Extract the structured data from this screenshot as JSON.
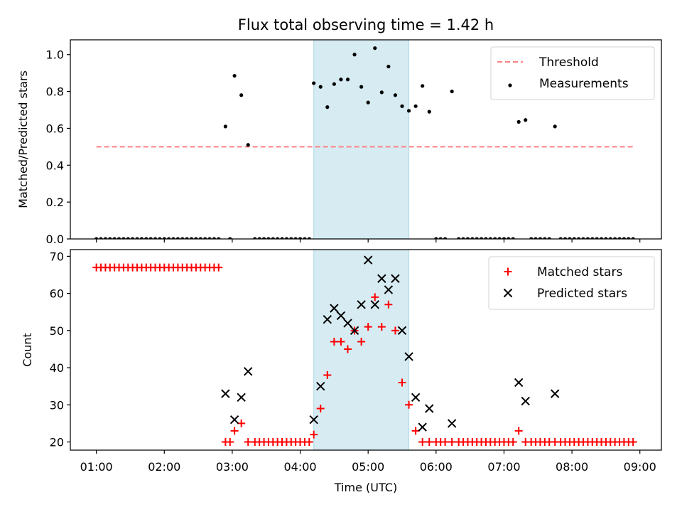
{
  "figure": {
    "title": "Flux total observing time = 1.42 h",
    "xlabel": "Time (UTC)",
    "shaded_interval": [
      "04:12",
      "05:36"
    ],
    "shade_color": "#add8e6"
  },
  "chart_data": [
    {
      "type": "scatter",
      "ylabel": "Matched/Predicted stars",
      "xlim": [
        "00:37",
        "09:19"
      ],
      "ylim": [
        0,
        1.08
      ],
      "y_ticks": [
        "0.0",
        "0.2",
        "0.4",
        "0.6",
        "0.8",
        "1.0"
      ],
      "legend_position": "top-right",
      "threshold": {
        "name": "Threshold",
        "value": 0.5,
        "x": [
          "01:00",
          "08:54"
        ],
        "style": "dashed",
        "color": "#ff8080"
      },
      "series": [
        {
          "name": "Measurements",
          "marker": "dot",
          "color": "#000000",
          "points": [
            [
              "01:00",
              0
            ],
            [
              "01:04",
              0
            ],
            [
              "01:08",
              0
            ],
            [
              "01:12",
              0
            ],
            [
              "01:16",
              0
            ],
            [
              "01:20",
              0
            ],
            [
              "01:24",
              0
            ],
            [
              "01:28",
              0
            ],
            [
              "01:32",
              0
            ],
            [
              "01:36",
              0
            ],
            [
              "01:40",
              0
            ],
            [
              "01:44",
              0
            ],
            [
              "01:48",
              0
            ],
            [
              "01:52",
              0
            ],
            [
              "01:56",
              0
            ],
            [
              "02:00",
              0
            ],
            [
              "02:04",
              0
            ],
            [
              "02:08",
              0
            ],
            [
              "02:12",
              0
            ],
            [
              "02:16",
              0
            ],
            [
              "02:20",
              0
            ],
            [
              "02:24",
              0
            ],
            [
              "02:28",
              0
            ],
            [
              "02:32",
              0
            ],
            [
              "02:36",
              0
            ],
            [
              "02:40",
              0
            ],
            [
              "02:44",
              0
            ],
            [
              "02:48",
              0
            ],
            [
              "02:54",
              0.61
            ],
            [
              "02:58",
              0
            ],
            [
              "03:02",
              0.885
            ],
            [
              "03:08",
              0.78
            ],
            [
              "03:14",
              0.51
            ],
            [
              "03:20",
              0
            ],
            [
              "03:24",
              0
            ],
            [
              "03:28",
              0
            ],
            [
              "03:32",
              0
            ],
            [
              "03:36",
              0
            ],
            [
              "03:40",
              0
            ],
            [
              "03:44",
              0
            ],
            [
              "03:48",
              0
            ],
            [
              "03:52",
              0
            ],
            [
              "03:56",
              0
            ],
            [
              "04:00",
              0
            ],
            [
              "04:04",
              0
            ],
            [
              "04:08",
              0
            ],
            [
              "04:12",
              0.845
            ],
            [
              "04:18",
              0.825
            ],
            [
              "04:24",
              0.715
            ],
            [
              "04:30",
              0.84
            ],
            [
              "04:36",
              0.865
            ],
            [
              "04:42",
              0.865
            ],
            [
              "04:48",
              1.0
            ],
            [
              "04:54",
              0.825
            ],
            [
              "05:00",
              0.74
            ],
            [
              "05:06",
              1.035
            ],
            [
              "05:12",
              0.795
            ],
            [
              "05:18",
              0.935
            ],
            [
              "05:24",
              0.78
            ],
            [
              "05:30",
              0.72
            ],
            [
              "05:36",
              0.695
            ],
            [
              "05:42",
              0.72
            ],
            [
              "05:48",
              0.83
            ],
            [
              "05:54",
              0.69
            ],
            [
              "06:00",
              0
            ],
            [
              "06:04",
              0
            ],
            [
              "06:08",
              0
            ],
            [
              "06:14",
              0.8
            ],
            [
              "06:20",
              0
            ],
            [
              "06:24",
              0
            ],
            [
              "06:28",
              0
            ],
            [
              "06:32",
              0
            ],
            [
              "06:36",
              0
            ],
            [
              "06:40",
              0
            ],
            [
              "06:44",
              0
            ],
            [
              "06:48",
              0
            ],
            [
              "06:52",
              0
            ],
            [
              "06:56",
              0
            ],
            [
              "07:00",
              0
            ],
            [
              "07:04",
              0
            ],
            [
              "07:08",
              0
            ],
            [
              "07:13",
              0.635
            ],
            [
              "07:19",
              0.645
            ],
            [
              "07:24",
              0
            ],
            [
              "07:28",
              0
            ],
            [
              "07:32",
              0
            ],
            [
              "07:36",
              0
            ],
            [
              "07:40",
              0
            ],
            [
              "07:45",
              0.61
            ],
            [
              "07:50",
              0
            ],
            [
              "07:54",
              0
            ],
            [
              "07:58",
              0
            ],
            [
              "08:02",
              0
            ],
            [
              "08:06",
              0
            ],
            [
              "08:10",
              0
            ],
            [
              "08:14",
              0
            ],
            [
              "08:18",
              0
            ],
            [
              "08:22",
              0
            ],
            [
              "08:26",
              0
            ],
            [
              "08:30",
              0
            ],
            [
              "08:34",
              0
            ],
            [
              "08:38",
              0
            ],
            [
              "08:42",
              0
            ],
            [
              "08:46",
              0
            ],
            [
              "08:50",
              0
            ],
            [
              "08:54",
              0
            ]
          ]
        }
      ]
    },
    {
      "type": "scatter",
      "ylabel": "Count",
      "xlabel": "Time (UTC)",
      "xlim": [
        "00:37",
        "09:19"
      ],
      "ylim": [
        17.8,
        71.8
      ],
      "y_ticks": [
        "20",
        "30",
        "40",
        "50",
        "60",
        "70"
      ],
      "x_ticks": [
        "01:00",
        "02:00",
        "03:00",
        "04:00",
        "05:00",
        "06:00",
        "07:00",
        "08:00",
        "09:00"
      ],
      "legend_position": "top-right",
      "series": [
        {
          "name": "Matched stars",
          "marker": "plus",
          "color": "#ff0000",
          "points": [
            [
              "01:00",
              67
            ],
            [
              "01:04",
              67
            ],
            [
              "01:08",
              67
            ],
            [
              "01:12",
              67
            ],
            [
              "01:16",
              67
            ],
            [
              "01:20",
              67
            ],
            [
              "01:24",
              67
            ],
            [
              "01:28",
              67
            ],
            [
              "01:32",
              67
            ],
            [
              "01:36",
              67
            ],
            [
              "01:40",
              67
            ],
            [
              "01:44",
              67
            ],
            [
              "01:48",
              67
            ],
            [
              "01:52",
              67
            ],
            [
              "01:56",
              67
            ],
            [
              "02:00",
              67
            ],
            [
              "02:04",
              67
            ],
            [
              "02:08",
              67
            ],
            [
              "02:12",
              67
            ],
            [
              "02:16",
              67
            ],
            [
              "02:20",
              67
            ],
            [
              "02:24",
              67
            ],
            [
              "02:28",
              67
            ],
            [
              "02:32",
              67
            ],
            [
              "02:36",
              67
            ],
            [
              "02:40",
              67
            ],
            [
              "02:44",
              67
            ],
            [
              "02:48",
              67
            ],
            [
              "02:54",
              20
            ],
            [
              "02:58",
              20
            ],
            [
              "03:02",
              23
            ],
            [
              "03:08",
              25
            ],
            [
              "03:14",
              20
            ],
            [
              "03:20",
              20
            ],
            [
              "03:24",
              20
            ],
            [
              "03:28",
              20
            ],
            [
              "03:32",
              20
            ],
            [
              "03:36",
              20
            ],
            [
              "03:40",
              20
            ],
            [
              "03:44",
              20
            ],
            [
              "03:48",
              20
            ],
            [
              "03:52",
              20
            ],
            [
              "03:56",
              20
            ],
            [
              "04:00",
              20
            ],
            [
              "04:04",
              20
            ],
            [
              "04:08",
              20
            ],
            [
              "04:12",
              22
            ],
            [
              "04:18",
              29
            ],
            [
              "04:24",
              38
            ],
            [
              "04:30",
              47
            ],
            [
              "04:36",
              47
            ],
            [
              "04:42",
              45
            ],
            [
              "04:48",
              50
            ],
            [
              "04:54",
              47
            ],
            [
              "05:00",
              51
            ],
            [
              "05:06",
              59
            ],
            [
              "05:12",
              51
            ],
            [
              "05:18",
              57
            ],
            [
              "05:24",
              50
            ],
            [
              "05:30",
              36
            ],
            [
              "05:36",
              30
            ],
            [
              "05:42",
              23
            ],
            [
              "05:48",
              20
            ],
            [
              "05:54",
              20
            ],
            [
              "06:00",
              20
            ],
            [
              "06:04",
              20
            ],
            [
              "06:08",
              20
            ],
            [
              "06:14",
              20
            ],
            [
              "06:20",
              20
            ],
            [
              "06:24",
              20
            ],
            [
              "06:28",
              20
            ],
            [
              "06:32",
              20
            ],
            [
              "06:36",
              20
            ],
            [
              "06:40",
              20
            ],
            [
              "06:44",
              20
            ],
            [
              "06:48",
              20
            ],
            [
              "06:52",
              20
            ],
            [
              "06:56",
              20
            ],
            [
              "07:00",
              20
            ],
            [
              "07:04",
              20
            ],
            [
              "07:08",
              20
            ],
            [
              "07:13",
              23
            ],
            [
              "07:19",
              20
            ],
            [
              "07:24",
              20
            ],
            [
              "07:28",
              20
            ],
            [
              "07:32",
              20
            ],
            [
              "07:36",
              20
            ],
            [
              "07:40",
              20
            ],
            [
              "07:45",
              20
            ],
            [
              "07:50",
              20
            ],
            [
              "07:54",
              20
            ],
            [
              "07:58",
              20
            ],
            [
              "08:02",
              20
            ],
            [
              "08:06",
              20
            ],
            [
              "08:10",
              20
            ],
            [
              "08:14",
              20
            ],
            [
              "08:18",
              20
            ],
            [
              "08:22",
              20
            ],
            [
              "08:26",
              20
            ],
            [
              "08:30",
              20
            ],
            [
              "08:34",
              20
            ],
            [
              "08:38",
              20
            ],
            [
              "08:42",
              20
            ],
            [
              "08:46",
              20
            ],
            [
              "08:50",
              20
            ],
            [
              "08:54",
              20
            ]
          ]
        },
        {
          "name": "Predicted stars",
          "marker": "x",
          "color": "#000000",
          "points": [
            [
              "02:54",
              33
            ],
            [
              "03:02",
              26
            ],
            [
              "03:08",
              32
            ],
            [
              "03:14",
              39
            ],
            [
              "04:12",
              26
            ],
            [
              "04:18",
              35
            ],
            [
              "04:24",
              53
            ],
            [
              "04:30",
              56
            ],
            [
              "04:36",
              54
            ],
            [
              "04:42",
              52
            ],
            [
              "04:48",
              50
            ],
            [
              "04:54",
              57
            ],
            [
              "05:00",
              69
            ],
            [
              "05:06",
              57
            ],
            [
              "05:12",
              64
            ],
            [
              "05:18",
              61
            ],
            [
              "05:24",
              64
            ],
            [
              "05:30",
              50
            ],
            [
              "05:36",
              43
            ],
            [
              "05:42",
              32
            ],
            [
              "05:48",
              24
            ],
            [
              "05:54",
              29
            ],
            [
              "06:14",
              25
            ],
            [
              "07:13",
              36
            ],
            [
              "07:19",
              31
            ],
            [
              "07:45",
              33
            ]
          ]
        }
      ]
    }
  ]
}
